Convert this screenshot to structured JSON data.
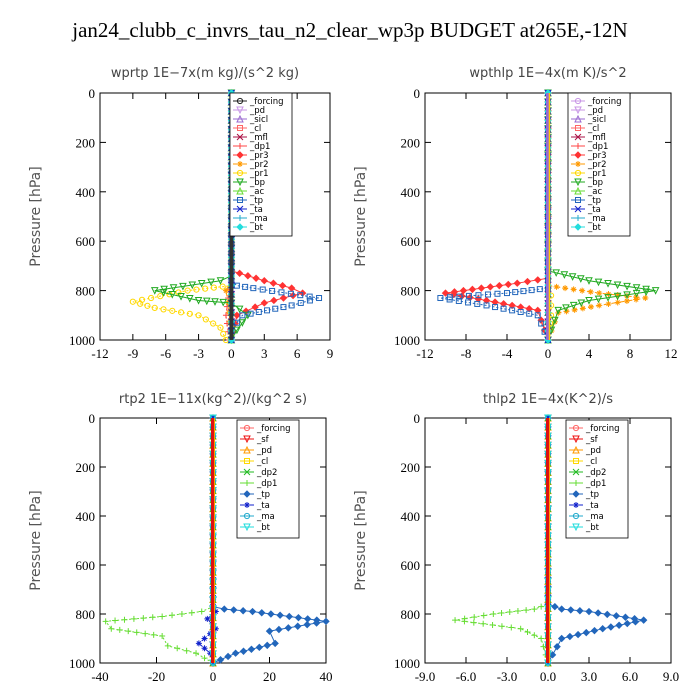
{
  "title": "jan24_clubb_c_invrs_tau_n2_clear_wp3p  BUDGET at265E,-12N",
  "colors": {
    "forcing": "#222222",
    "pd": "#c896e6",
    "sicl": "#9a6ad0",
    "cl": "#ff6666",
    "mfl": "#aa1144",
    "dp1": "#ff4444",
    "pr3": "#ff3333",
    "pr2": "#ff9900",
    "pr1": "#ffd800",
    "bp": "#22aa22",
    "ac": "#66dd33",
    "tp": "#2266bb",
    "ta": "#1122cc",
    "ma": "#22aacc",
    "bt": "#22dddd",
    "sf": "#ee1111",
    "dp2": "#22bb22"
  },
  "chart_data": [
    {
      "type": "line",
      "title": "wprtp   1E−7x(m kg)/(s^2 kg)",
      "ylabel": "Pressure [hPa]",
      "xlim": [
        -12,
        9
      ],
      "ylim": [
        1000,
        0
      ],
      "xticks": [
        "-12",
        "-9",
        "-6",
        "-3",
        "0",
        "3",
        "6",
        "9"
      ],
      "yticks": [
        "0",
        "200",
        "400",
        "600",
        "800",
        "1000"
      ],
      "series": [
        {
          "name": "_forcing",
          "key": "forcing",
          "points": [
            [
              0,
              0
            ],
            [
              0,
              750
            ],
            [
              0,
              850
            ],
            [
              0,
              1000
            ]
          ]
        },
        {
          "name": "_pd",
          "key": "pd",
          "points": [
            [
              0,
              0
            ],
            [
              0,
              1000
            ]
          ]
        },
        {
          "name": "_sicl",
          "key": "sicl",
          "points": [
            [
              0,
              0
            ],
            [
              0,
              1000
            ]
          ]
        },
        {
          "name": "_cl",
          "key": "cl",
          "points": [
            [
              0,
              0
            ],
            [
              0,
              1000
            ]
          ]
        },
        {
          "name": "_mfl",
          "key": "mfl",
          "points": [
            [
              0,
              0
            ],
            [
              0,
              1000
            ]
          ]
        },
        {
          "name": "_dp1",
          "key": "dp1",
          "points": [
            [
              0,
              0
            ],
            [
              0,
              760
            ],
            [
              -0.3,
              830
            ],
            [
              -0.5,
              900
            ],
            [
              -0.2,
              1000
            ]
          ]
        },
        {
          "name": "_pr3",
          "key": "pr3",
          "points": [
            [
              0,
              0
            ],
            [
              0,
              720
            ],
            [
              3,
              760
            ],
            [
              5.5,
              790
            ],
            [
              6.5,
              810
            ],
            [
              3,
              850
            ],
            [
              0.5,
              900
            ],
            [
              0,
              1000
            ]
          ]
        },
        {
          "name": "_pr2",
          "key": "pr2",
          "points": [
            [
              0,
              0
            ],
            [
              0,
              760
            ],
            [
              -0.5,
              800
            ],
            [
              -0.3,
              850
            ],
            [
              0,
              1000
            ]
          ]
        },
        {
          "name": "_pr1",
          "key": "pr1",
          "points": [
            [
              0,
              0
            ],
            [
              0,
              780
            ],
            [
              -4,
              800
            ],
            [
              -9,
              845
            ],
            [
              -7,
              870
            ],
            [
              -3,
              900
            ],
            [
              -1,
              950
            ],
            [
              -0.5,
              1000
            ]
          ]
        },
        {
          "name": "_bp",
          "key": "bp",
          "points": [
            [
              0,
              0
            ],
            [
              0,
              740
            ],
            [
              -1,
              760
            ],
            [
              -7,
              800
            ],
            [
              -3,
              840
            ],
            [
              0,
              850
            ],
            [
              1.5,
              900
            ],
            [
              0.5,
              960
            ],
            [
              0,
              1000
            ]
          ]
        },
        {
          "name": "_ac",
          "key": "ac",
          "points": [
            [
              0,
              0
            ],
            [
              0,
              1000
            ]
          ]
        },
        {
          "name": "_tp",
          "key": "tp",
          "points": [
            [
              0,
              0
            ],
            [
              0,
              760
            ],
            [
              0.5,
              780
            ],
            [
              2,
              790
            ],
            [
              8,
              830
            ],
            [
              5.5,
              860
            ],
            [
              1,
              900
            ],
            [
              0,
              960
            ],
            [
              0,
              1000
            ]
          ]
        },
        {
          "name": "_ta",
          "key": "ta",
          "points": [
            [
              0,
              0
            ],
            [
              0,
              1000
            ]
          ]
        },
        {
          "name": "_ma",
          "key": "ma",
          "points": [
            [
              0,
              0
            ],
            [
              0,
              1000
            ]
          ]
        },
        {
          "name": "_bt",
          "key": "bt",
          "points": [
            [
              0,
              0
            ],
            [
              0,
              1000
            ]
          ]
        }
      ]
    },
    {
      "type": "line",
      "title": "wpthlp   1E−4x(m K)/s^2",
      "ylabel": "Pressure [hPa]",
      "xlim": [
        -12,
        12
      ],
      "ylim": [
        1000,
        0
      ],
      "xticks": [
        "-12",
        "-8",
        "-4",
        "0",
        "4",
        "8",
        "12"
      ],
      "yticks": [
        "0",
        "200",
        "400",
        "600",
        "800",
        "1000"
      ],
      "series": [
        {
          "name": "_forcing",
          "key": "pd",
          "points": [
            [
              0,
              0
            ],
            [
              0,
              1000
            ]
          ]
        },
        {
          "name": "_pd",
          "key": "pd",
          "points": [
            [
              0,
              0
            ],
            [
              0,
              1000
            ]
          ]
        },
        {
          "name": "_sicl",
          "key": "sicl",
          "points": [
            [
              0,
              0
            ],
            [
              0,
              1000
            ]
          ]
        },
        {
          "name": "_cl",
          "key": "cl",
          "points": [
            [
              0,
              0
            ],
            [
              0,
              1000
            ]
          ]
        },
        {
          "name": "_mfl",
          "key": "mfl",
          "points": [
            [
              0,
              0
            ],
            [
              0,
              1000
            ]
          ]
        },
        {
          "name": "_dp1",
          "key": "dp1",
          "points": [
            [
              0,
              0
            ],
            [
              0,
              1000
            ]
          ]
        },
        {
          "name": "_pr3",
          "key": "pr3",
          "points": [
            [
              0,
              0
            ],
            [
              0,
              750
            ],
            [
              -3,
              770
            ],
            [
              -10,
              810
            ],
            [
              -6,
              840
            ],
            [
              -1,
              880
            ],
            [
              0,
              1000
            ]
          ]
        },
        {
          "name": "_pr2",
          "key": "pr2",
          "points": [
            [
              0,
              0
            ],
            [
              0,
              780
            ],
            [
              5,
              810
            ],
            [
              9.5,
              830
            ],
            [
              5,
              860
            ],
            [
              1,
              890
            ],
            [
              0,
              1000
            ]
          ]
        },
        {
          "name": "_pr1",
          "key": "pr1",
          "points": [
            [
              0,
              0
            ],
            [
              0,
              800
            ],
            [
              0.3,
              820
            ],
            [
              0.3,
              900
            ],
            [
              0,
              1000
            ]
          ]
        },
        {
          "name": "_bp",
          "key": "bp",
          "points": [
            [
              0,
              0
            ],
            [
              0,
              720
            ],
            [
              4,
              760
            ],
            [
              10.5,
              800
            ],
            [
              4,
              840
            ],
            [
              1,
              880
            ],
            [
              0,
              1000
            ]
          ]
        },
        {
          "name": "_ac",
          "key": "ac",
          "points": [
            [
              0,
              0
            ],
            [
              0,
              1000
            ]
          ]
        },
        {
          "name": "_tp",
          "key": "tp",
          "points": [
            [
              0,
              0
            ],
            [
              0,
              790
            ],
            [
              -4,
              810
            ],
            [
              -10.5,
              830
            ],
            [
              -6,
              860
            ],
            [
              -1,
              900
            ],
            [
              0,
              1000
            ]
          ]
        },
        {
          "name": "_ta",
          "key": "ta",
          "points": [
            [
              0,
              0
            ],
            [
              0,
              1000
            ]
          ]
        },
        {
          "name": "_ma",
          "key": "ma",
          "points": [
            [
              0,
              0
            ],
            [
              0,
              1000
            ]
          ]
        },
        {
          "name": "_bt",
          "key": "bt",
          "points": [
            [
              0,
              0
            ],
            [
              0,
              1000
            ]
          ]
        }
      ]
    },
    {
      "type": "line",
      "title": "rtp2   1E−11x(kg^2)/(kg^2 s)",
      "ylabel": "Pressure [hPa]",
      "xlim": [
        -40,
        40
      ],
      "ylim": [
        1000,
        0
      ],
      "xticks": [
        "-40",
        "-20",
        "0",
        "20",
        "40"
      ],
      "yticks": [
        "0",
        "200",
        "400",
        "600",
        "800",
        "1000"
      ],
      "series": [
        {
          "name": "_forcing",
          "key": "cl",
          "points": [
            [
              0,
              0
            ],
            [
              0,
              1000
            ]
          ]
        },
        {
          "name": "_sf",
          "key": "sf",
          "points": [
            [
              0,
              0
            ],
            [
              0,
              1000
            ]
          ]
        },
        {
          "name": "_pd",
          "key": "pr2",
          "points": [
            [
              0,
              0
            ],
            [
              0,
              1000
            ]
          ]
        },
        {
          "name": "_cl",
          "key": "pr1",
          "points": [
            [
              0,
              0
            ],
            [
              0,
              1000
            ]
          ]
        },
        {
          "name": "_dp2",
          "key": "dp2",
          "points": [
            [
              0,
              0
            ],
            [
              0,
              1000
            ]
          ]
        },
        {
          "name": "_dp1",
          "key": "ac",
          "points": [
            [
              0,
              0
            ],
            [
              0,
              770
            ],
            [
              -4,
              790
            ],
            [
              -18,
              810
            ],
            [
              -38,
              830
            ],
            [
              -36,
              860
            ],
            [
              -18,
              890
            ],
            [
              -16,
              930
            ],
            [
              -6,
              960
            ],
            [
              0,
              1000
            ]
          ]
        },
        {
          "name": "_tp",
          "key": "tp",
          "points": [
            [
              0,
              0
            ],
            [
              0,
              770
            ],
            [
              4,
              780
            ],
            [
              14,
              790
            ],
            [
              40,
              830
            ],
            [
              20,
              870
            ],
            [
              22,
              920
            ],
            [
              8,
              960
            ],
            [
              0,
              1000
            ]
          ]
        },
        {
          "name": "_ta",
          "key": "ta",
          "points": [
            [
              0,
              0
            ],
            [
              0,
              760
            ],
            [
              1,
              790
            ],
            [
              -2,
              820
            ],
            [
              1,
              860
            ],
            [
              -3,
              900
            ],
            [
              -5,
              920
            ],
            [
              -1,
              960
            ],
            [
              0,
              1000
            ]
          ]
        },
        {
          "name": "_ma",
          "key": "ma",
          "points": [
            [
              0,
              0
            ],
            [
              0,
              1000
            ]
          ]
        },
        {
          "name": "_bt",
          "key": "bt",
          "points": [
            [
              0,
              0
            ],
            [
              0,
              1000
            ]
          ]
        }
      ]
    },
    {
      "type": "line",
      "title": "thlp2   1E−4x(K^2)/s",
      "ylabel": "Pressure [hPa]",
      "xlim": [
        -9,
        9
      ],
      "ylim": [
        1000,
        0
      ],
      "xticks": [
        "-9.0",
        "-6.0",
        "-3.0",
        "0.0",
        "3.0",
        "6.0",
        "9.0"
      ],
      "yticks": [
        "0",
        "200",
        "400",
        "600",
        "800",
        "1000"
      ],
      "series": [
        {
          "name": "_forcing",
          "key": "cl",
          "points": [
            [
              0,
              0
            ],
            [
              0,
              1000
            ]
          ]
        },
        {
          "name": "_sf",
          "key": "sf",
          "points": [
            [
              0,
              0
            ],
            [
              0,
              1000
            ]
          ]
        },
        {
          "name": "_pd",
          "key": "pr2",
          "points": [
            [
              0,
              0
            ],
            [
              0,
              1000
            ]
          ]
        },
        {
          "name": "_cl",
          "key": "pr1",
          "points": [
            [
              0,
              0
            ],
            [
              0,
              1000
            ]
          ]
        },
        {
          "name": "_dp2",
          "key": "dp2",
          "points": [
            [
              0,
              0
            ],
            [
              0,
              1000
            ]
          ]
        },
        {
          "name": "_dp1",
          "key": "ac",
          "points": [
            [
              0,
              0
            ],
            [
              0,
              760
            ],
            [
              -1,
              780
            ],
            [
              -4,
              800
            ],
            [
              -6.8,
              825
            ],
            [
              -2,
              860
            ],
            [
              -0.5,
              900
            ],
            [
              0,
              1000
            ]
          ]
        },
        {
          "name": "_tp",
          "key": "tp",
          "points": [
            [
              0,
              0
            ],
            [
              0,
              760
            ],
            [
              1,
              780
            ],
            [
              3,
              790
            ],
            [
              7,
              825
            ],
            [
              4,
              860
            ],
            [
              1,
              900
            ],
            [
              0,
              1000
            ]
          ]
        },
        {
          "name": "_ta",
          "key": "ta",
          "points": [
            [
              0,
              0
            ],
            [
              0,
              1000
            ]
          ]
        },
        {
          "name": "_ma",
          "key": "ma",
          "points": [
            [
              0,
              0
            ],
            [
              0,
              1000
            ]
          ]
        },
        {
          "name": "_bt",
          "key": "bt",
          "points": [
            [
              0,
              0
            ],
            [
              0,
              1000
            ]
          ]
        }
      ]
    }
  ]
}
